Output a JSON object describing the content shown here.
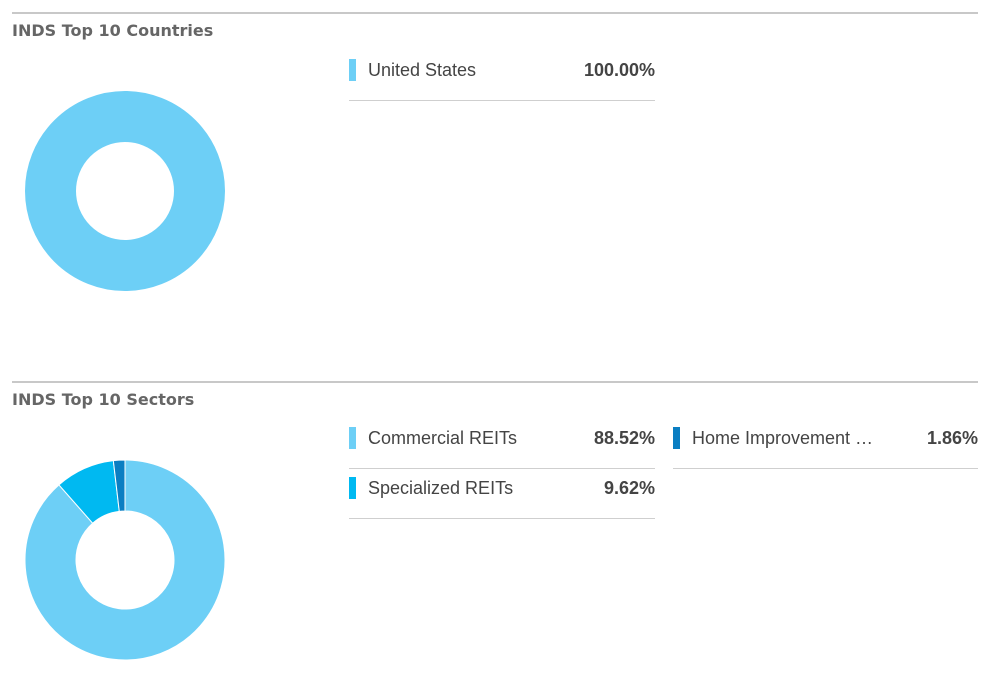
{
  "chart_data": [
    {
      "type": "pie",
      "title": "INDS Top 10 Countries",
      "categories": [
        "United States"
      ],
      "values": [
        100.0
      ],
      "value_labels": [
        "100.00%"
      ],
      "colors": [
        "#6dcff6"
      ],
      "legend_position": "right",
      "donut": true
    },
    {
      "type": "pie",
      "title": "INDS Top 10 Sectors",
      "categories": [
        "Commercial REITs",
        "Specialized REITs",
        "Home Improvement …"
      ],
      "values": [
        88.52,
        9.62,
        1.86
      ],
      "value_labels": [
        "88.52%",
        "9.62%",
        "1.86%"
      ],
      "colors": [
        "#6dcff6",
        "#00b9f1",
        "#0a7ec2"
      ],
      "legend_position": "right",
      "donut": true
    }
  ]
}
